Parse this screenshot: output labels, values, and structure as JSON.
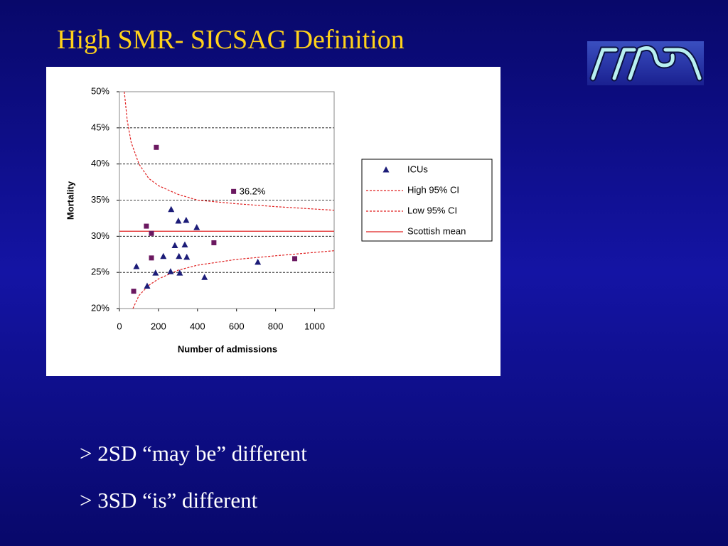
{
  "slide": {
    "title": "High SMR- SICSAG Definition",
    "bullets": [
      "> 2SD “may be” different",
      "> 3SD “is” different"
    ]
  },
  "chart_data": {
    "type": "scatter",
    "xlabel": "Number of admissions",
    "ylabel": "Mortality",
    "xlim": [
      0,
      1100
    ],
    "xticks": [
      0,
      200,
      400,
      600,
      800,
      1000
    ],
    "ylim": [
      20,
      50
    ],
    "yticks": [
      {
        "value": 20,
        "label": "20%"
      },
      {
        "value": 25,
        "label": "25%"
      },
      {
        "value": 30,
        "label": "30%"
      },
      {
        "value": 35,
        "label": "35%"
      },
      {
        "value": 40,
        "label": "40%"
      },
      {
        "value": 45,
        "label": "45%"
      },
      {
        "value": 50,
        "label": "50%"
      }
    ],
    "grid": true,
    "legend": "right",
    "series": [
      {
        "name": "ICUs",
        "color": "#1c1c78",
        "marker": "triangle",
        "x": [
          87,
          142,
          185,
          225,
          265,
          262,
          284,
          302,
          305,
          309,
          335,
          342,
          345,
          396,
          436,
          709
        ],
        "values": [
          25.8,
          23.1,
          24.9,
          27.2,
          33.7,
          25.1,
          28.7,
          32.1,
          27.2,
          24.9,
          28.8,
          32.2,
          27.1,
          31.2,
          24.3,
          26.4
        ]
      },
      {
        "color": "#6b1860",
        "marker": "square",
        "x": [
          73,
          138,
          164,
          164,
          189,
          484,
          585,
          898
        ],
        "values": [
          22.4,
          31.4,
          30.4,
          27.0,
          42.3,
          29.1,
          36.2,
          26.9
        ],
        "value_labels": [
          null,
          null,
          null,
          null,
          null,
          null,
          "36.2%",
          null
        ]
      },
      {
        "name": "High 95% CI",
        "color": "#e02020",
        "marker": "line",
        "dash": true,
        "x": [
          25,
          40,
          60,
          100,
          150,
          200,
          300,
          400,
          600,
          800,
          1100
        ],
        "values": [
          50,
          46,
          43,
          40,
          38,
          37,
          35.8,
          35.0,
          34.5,
          34.1,
          33.6
        ]
      },
      {
        "name": "Low 95% CI",
        "color": "#e02020",
        "marker": "line",
        "dash": true,
        "x": [
          69,
          100,
          150,
          200,
          300,
          400,
          600,
          800,
          1100
        ],
        "values": [
          20,
          21.8,
          23.2,
          24.1,
          25.3,
          26.0,
          26.8,
          27.3,
          28.0
        ]
      },
      {
        "name": "Scottish mean",
        "color": "#e02020",
        "marker": "line",
        "dash": false,
        "x": [
          0,
          1100
        ],
        "values": [
          30.7,
          30.7
        ]
      }
    ]
  }
}
